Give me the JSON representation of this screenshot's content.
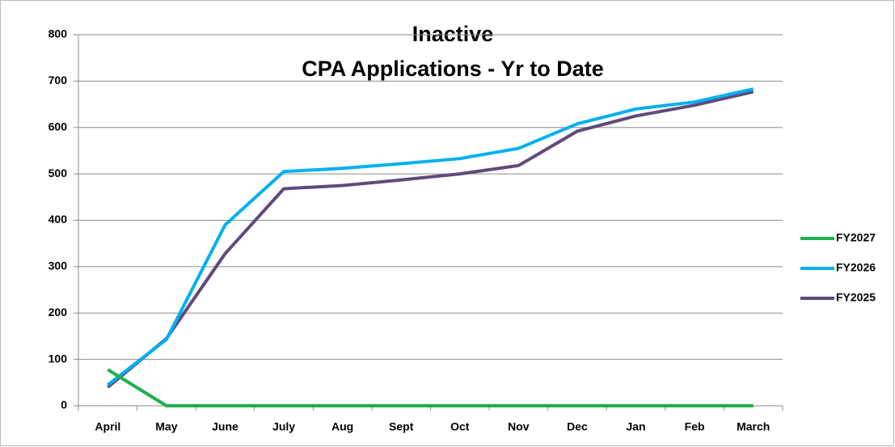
{
  "chart_data": {
    "type": "line",
    "title": "Inactive",
    "subtitle": "CPA Applications - Yr to Date",
    "categories": [
      "April",
      "May",
      "June",
      "July",
      "Aug",
      "Sept",
      "Oct",
      "Nov",
      "Dec",
      "Jan",
      "Feb",
      "March"
    ],
    "series": [
      {
        "name": "FY2027",
        "color": "#1fb04c",
        "values": [
          78,
          0,
          0,
          0,
          0,
          0,
          0,
          0,
          0,
          0,
          0,
          0
        ]
      },
      {
        "name": "FY2026",
        "color": "#00b0f0",
        "values": [
          45,
          143,
          390,
          505,
          512,
          522,
          533,
          555,
          608,
          640,
          655,
          683
        ]
      },
      {
        "name": "FY2025",
        "color": "#604a7b",
        "values": [
          40,
          145,
          328,
          468,
          475,
          487,
          500,
          518,
          592,
          625,
          648,
          677
        ]
      }
    ],
    "ylim": [
      0,
      800
    ],
    "yticks": [
      0,
      100,
      200,
      300,
      400,
      500,
      600,
      700,
      800
    ],
    "grid": true,
    "legend": "right"
  }
}
